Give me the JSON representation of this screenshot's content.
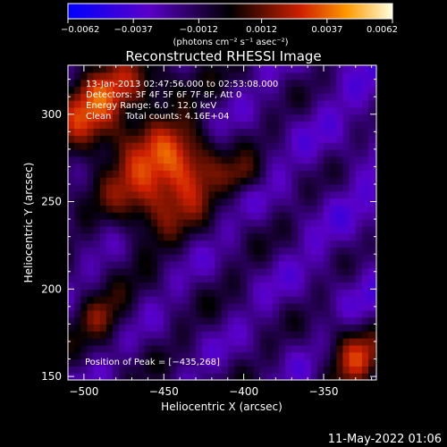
{
  "chart_data": {
    "type": "heatmap",
    "title": "Reconstructed RHESSI Image",
    "xlabel": "Heliocentric X (arcsec)",
    "ylabel": "Heliocentric Y (arcsec)",
    "xlim": [
      -510,
      -317
    ],
    "ylim": [
      148,
      328
    ],
    "xticks": [
      -500,
      -450,
      -400,
      -350
    ],
    "xtick_labels": [
      "−500",
      "−450",
      "−400",
      "−350"
    ],
    "yticks": [
      150,
      200,
      250,
      300
    ],
    "ytick_labels": [
      "150",
      "200",
      "250",
      "300"
    ],
    "colorbar": {
      "vmin": -0.0062,
      "vmax": 0.0062,
      "ticks": [
        -0.0062,
        -0.0037,
        -0.0012,
        0.0012,
        0.0037,
        0.0062
      ],
      "tick_labels": [
        "−0.0062",
        "−0.0037",
        "−0.0012",
        "0.0012",
        "0.0037",
        "0.0062"
      ],
      "unit_label": "(photons cm⁻² s⁻¹ asec⁻²)"
    },
    "annotations": [
      "13-Jan-2013 02:47:56.000 to 02:53:08.000",
      "Detectors: 3F 4F 5F 6F 7F 8F, Att 0",
      "Energy Range: 6.0 - 12.0 keV",
      "Clean     Total counts: 4.16E+04"
    ],
    "peak_label": "Position of Peak = [−435,268]",
    "peak_position": [
      -435,
      268
    ]
  },
  "footer": {
    "timestamp": "11-May-2022 01:06"
  }
}
